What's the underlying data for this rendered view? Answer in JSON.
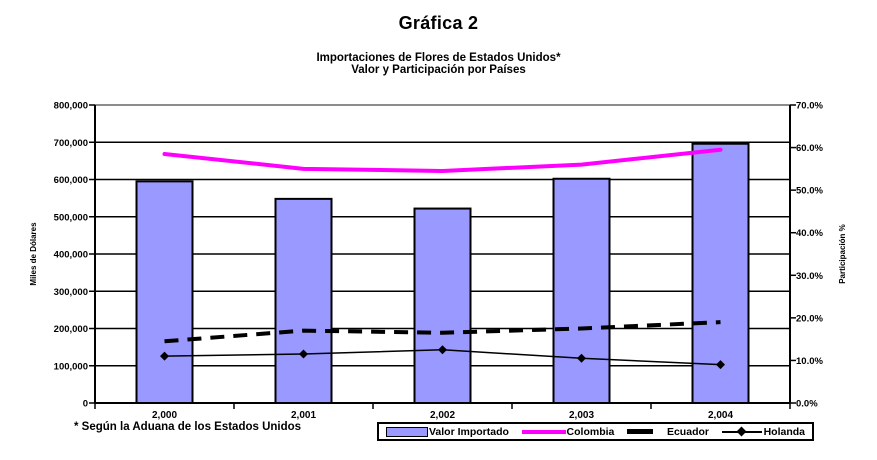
{
  "page": {
    "title": "Gráfica 2",
    "subtitle_line1": "Importaciones de Flores de Estados Unidos*",
    "subtitle_line2": "Valor y Participación por Países",
    "footnote": "* Según la Aduana de los Estados Unidos"
  },
  "legend": {
    "items": [
      {
        "label": "Valor Importado",
        "marker": "bar-swatch",
        "color": "#9999FF"
      },
      {
        "label": "Colombia",
        "marker": "thick-line",
        "color": "#FF00FF"
      },
      {
        "label": "Ecuador",
        "marker": "thick-dash",
        "color": "#000000"
      },
      {
        "label": "Holanda",
        "marker": "line-diamond",
        "color": "#000000"
      }
    ]
  },
  "colors": {
    "background": "#FFFFFF",
    "bar_fill": "#9999FF",
    "bar_border": "#000000",
    "colombia_line": "#FF00FF",
    "ecuador_line": "#000000",
    "holanda_line": "#000000",
    "gridline": "#000000",
    "top_gridline": "#8C8C8C",
    "text": "#000000"
  },
  "chart_data": {
    "type": "bar+line",
    "categories": [
      "2,000",
      "2,001",
      "2,002",
      "2,003",
      "2,004"
    ],
    "bar_series": {
      "name": "Valor Importado",
      "axis": "left",
      "unit": "miles de dólares",
      "values": [
        595000,
        548000,
        522000,
        602000,
        696000
      ]
    },
    "line_series": [
      {
        "name": "Colombia",
        "axis": "right",
        "style": "solid-thick",
        "values": [
          58.5,
          55.0,
          54.5,
          56.0,
          59.5
        ]
      },
      {
        "name": "Ecuador",
        "axis": "right",
        "style": "dashed-thick",
        "values": [
          14.5,
          17.0,
          16.5,
          17.5,
          19.0
        ]
      },
      {
        "name": "Holanda",
        "axis": "right",
        "style": "thin-diamond-marker",
        "values": [
          11.0,
          11.5,
          12.5,
          10.5,
          9.0
        ]
      }
    ],
    "left_axis": {
      "label": "Miles de Dólares",
      "min": 0,
      "max": 800000,
      "step": 100000,
      "tick_labels": [
        "800,000",
        "700,000",
        "600,000",
        "500,000",
        "400,000",
        "300,000",
        "200,000",
        "100,000",
        "0"
      ]
    },
    "right_axis": {
      "label": "Participación %",
      "min": 0,
      "max": 70,
      "step": 10,
      "tick_labels": [
        "70.0%",
        "60.0%",
        "50.0%",
        "40.0%",
        "30.0%",
        "20.0%",
        "10.0%",
        "0.0%"
      ]
    },
    "grid": "horizontal-on",
    "legend_position": "bottom"
  }
}
